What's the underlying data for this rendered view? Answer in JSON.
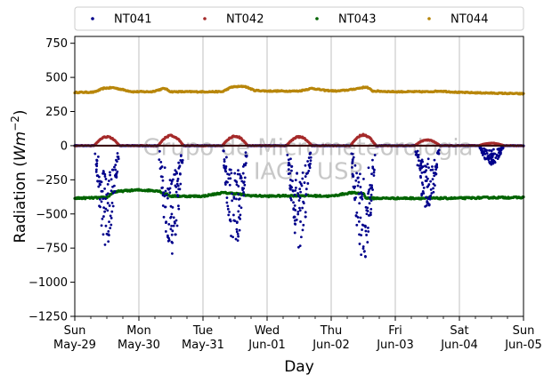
{
  "chart_data": {
    "type": "scatter",
    "xlabel": "Day",
    "ylabel_main": "Radiation (",
    "ylabel_unit_base": "Wm",
    "ylabel_unit_exp": "−2",
    "ylabel_close": ")",
    "ylim": [
      -1250,
      800
    ],
    "yticks": [
      -1250,
      -1000,
      -750,
      -500,
      -250,
      0,
      250,
      500,
      750
    ],
    "ytick_labels": [
      "−1250",
      "−1000",
      "−750",
      "−500",
      "−250",
      "0",
      "250",
      "500",
      "750"
    ],
    "xlim_days": [
      0,
      7
    ],
    "x_start_date": "2022-05-29",
    "xticks": [
      {
        "day": "Sun",
        "date": "May-29"
      },
      {
        "day": "Mon",
        "date": "May-30"
      },
      {
        "day": "Tue",
        "date": "May-31"
      },
      {
        "day": "Wed",
        "date": "Jun-01"
      },
      {
        "day": "Thu",
        "date": "Jun-02"
      },
      {
        "day": "Fri",
        "date": "Jun-03"
      },
      {
        "day": "Sat",
        "date": "Jun-04"
      },
      {
        "day": "Sun",
        "date": "Jun-05"
      }
    ],
    "grid": "vertical",
    "legend": "top-outside",
    "watermark": [
      "Grupo de Micrometeorologia",
      "IAG - USP"
    ],
    "series": [
      {
        "name": "NT041",
        "color": "#00008b",
        "baseline": 0,
        "daytime_min": [
          -750,
          -820,
          -770,
          -760,
          -860,
          -480,
          -140
        ]
      },
      {
        "name": "NT042",
        "color": "#a52a2a",
        "baseline": 0,
        "daytime_max": [
          70,
          80,
          75,
          70,
          85,
          45,
          20
        ]
      },
      {
        "name": "NT043",
        "color": "#006400",
        "baseline": -385,
        "approx": [
          [
            0.0,
            -385
          ],
          [
            0.5,
            -380
          ],
          [
            0.6,
            -340
          ],
          [
            0.8,
            -330
          ],
          [
            1.0,
            -325
          ],
          [
            1.3,
            -330
          ],
          [
            1.5,
            -370
          ],
          [
            2.0,
            -370
          ],
          [
            2.3,
            -345
          ],
          [
            2.5,
            -350
          ],
          [
            2.7,
            -365
          ],
          [
            3.0,
            -370
          ],
          [
            3.5,
            -365
          ],
          [
            4.0,
            -370
          ],
          [
            4.3,
            -345
          ],
          [
            4.5,
            -350
          ],
          [
            4.55,
            -385
          ],
          [
            5.0,
            -385
          ],
          [
            6.0,
            -385
          ],
          [
            6.5,
            -380
          ],
          [
            7.0,
            -380
          ]
        ]
      },
      {
        "name": "NT044",
        "color": "#b8860b",
        "baseline": 390,
        "approx": [
          [
            0.0,
            390
          ],
          [
            0.3,
            392
          ],
          [
            0.45,
            420
          ],
          [
            0.6,
            425
          ],
          [
            0.75,
            410
          ],
          [
            0.9,
            395
          ],
          [
            1.2,
            395
          ],
          [
            1.4,
            420
          ],
          [
            1.5,
            395
          ],
          [
            1.9,
            395
          ],
          [
            2.3,
            395
          ],
          [
            2.45,
            430
          ],
          [
            2.65,
            435
          ],
          [
            2.8,
            405
          ],
          [
            3.0,
            400
          ],
          [
            3.5,
            400
          ],
          [
            3.7,
            420
          ],
          [
            3.9,
            405
          ],
          [
            4.1,
            400
          ],
          [
            4.3,
            410
          ],
          [
            4.55,
            430
          ],
          [
            4.65,
            400
          ],
          [
            5.0,
            395
          ],
          [
            5.5,
            395
          ],
          [
            5.7,
            400
          ],
          [
            6.0,
            390
          ],
          [
            6.5,
            385
          ],
          [
            7.0,
            380
          ]
        ]
      }
    ]
  }
}
